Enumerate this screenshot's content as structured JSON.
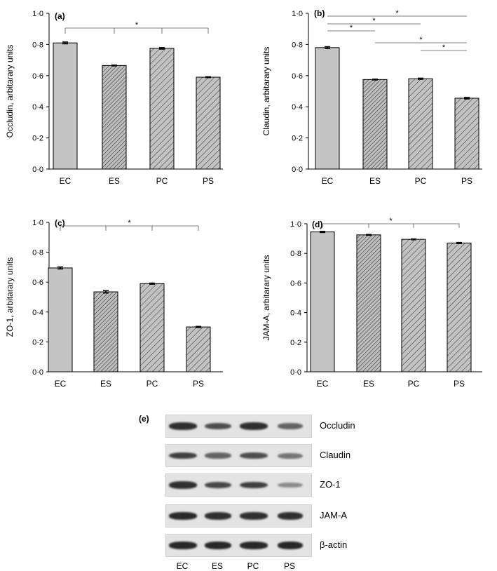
{
  "chart_data": [
    {
      "panel": "(a)",
      "type": "bar",
      "categories": [
        "EC",
        "ES",
        "PC",
        "PS"
      ],
      "values": [
        0.81,
        0.665,
        0.775,
        0.59
      ],
      "errors": [
        0.006,
        0.003,
        0.005,
        0.003
      ],
      "ylabel": "Occludin, arbitarary units",
      "ylim": [
        0,
        1.0
      ],
      "yticks": [
        "0·0",
        "0·2",
        "0·4",
        "0·6",
        "0·8",
        "1·0"
      ],
      "significance": [
        {
          "from": 0,
          "to": 3,
          "drops": [
            0,
            1,
            2,
            3
          ],
          "label": "*"
        }
      ]
    },
    {
      "panel": "(b)",
      "type": "bar",
      "categories": [
        "EC",
        "ES",
        "PC",
        "PS"
      ],
      "values": [
        0.78,
        0.575,
        0.58,
        0.455
      ],
      "errors": [
        0.006,
        0.003,
        0.004,
        0.005
      ],
      "ylabel": "Claudin, arbitarary units",
      "ylim": [
        0,
        1.0
      ],
      "yticks": [
        "0·0",
        "0·2",
        "0·4",
        "0·6",
        "0·8",
        "1·0"
      ],
      "significance": [
        {
          "from": 0,
          "to": 3,
          "label": "*"
        },
        {
          "from": 0,
          "to": 2,
          "label": "*"
        },
        {
          "from": 0,
          "to": 1,
          "label": "*"
        },
        {
          "from": 1,
          "to": 3,
          "label": "*"
        },
        {
          "from": 2,
          "to": 3,
          "label": "*"
        }
      ]
    },
    {
      "panel": "(c)",
      "type": "bar",
      "categories": [
        "EC",
        "ES",
        "PC",
        "PS"
      ],
      "values": [
        0.695,
        0.535,
        0.59,
        0.3
      ],
      "errors": [
        0.007,
        0.008,
        0.004,
        0.004
      ],
      "ylabel": "ZO-1, arbitarary units",
      "ylim": [
        0,
        1.0
      ],
      "yticks": [
        "0·0",
        "0·2",
        "0·4",
        "0·6",
        "0·8",
        "1·0"
      ],
      "significance": [
        {
          "from": 0,
          "to": 3,
          "drops": [
            0,
            1,
            2,
            3
          ],
          "label": "*"
        }
      ]
    },
    {
      "panel": "(d)",
      "type": "bar",
      "categories": [
        "EC",
        "ES",
        "PC",
        "PS"
      ],
      "values": [
        0.945,
        0.925,
        0.895,
        0.87
      ],
      "errors": [
        0.004,
        0.003,
        0.003,
        0.004
      ],
      "ylabel": "JAM-A, arbitarary units",
      "ylim": [
        0,
        1.0
      ],
      "yticks": [
        "0·0",
        "0·2",
        "0·4",
        "0·6",
        "0·8",
        "1·0"
      ],
      "significance": [
        {
          "from": 0,
          "to": 3,
          "drops": [
            0,
            1,
            2,
            3
          ],
          "label": "*"
        }
      ]
    }
  ],
  "blot": {
    "panel": "(e)",
    "lanes": [
      "EC",
      "ES",
      "PC",
      "PS"
    ],
    "proteins": [
      {
        "name": "Occludin",
        "intensity": [
          0.85,
          0.65,
          0.85,
          0.5
        ]
      },
      {
        "name": "Claudin",
        "intensity": [
          0.75,
          0.5,
          0.65,
          0.4
        ]
      },
      {
        "name": "ZO-1",
        "intensity": [
          0.85,
          0.7,
          0.75,
          0.25
        ]
      },
      {
        "name": "JAM-A",
        "intensity": [
          0.9,
          0.85,
          0.85,
          0.85
        ]
      },
      {
        "name": "β-actin",
        "intensity": [
          0.9,
          0.9,
          0.9,
          0.9
        ]
      }
    ]
  },
  "colors": {
    "control_bar": "#c4c4c4",
    "stress_bar": "#bdbdbd",
    "hatch": "#333333",
    "blot_bg": "#e3e3e3",
    "band": "#1a1a1a"
  }
}
